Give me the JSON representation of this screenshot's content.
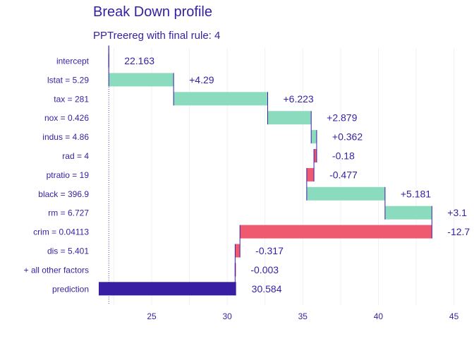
{
  "title": "Break Down profile",
  "subtitle": "PPTreereg with final rule:  4",
  "colors": {
    "text": "#371ea3",
    "increase": "#8bdcbe",
    "decrease": "#f05a71",
    "prediction": "#371ea3",
    "grid": "#f0f0f4",
    "connector": "#371ea3"
  },
  "chart_data": {
    "type": "bar",
    "title": "Break Down profile",
    "subtitle": "PPTreereg with final rule:  4",
    "orientation": "horizontal-waterfall",
    "xlim": [
      21.5,
      46.0
    ],
    "x_ticks": [
      25,
      30,
      35,
      40,
      45
    ],
    "grid": true,
    "categories": [
      "intercept",
      "lstat = 5.29",
      "tax = 281",
      "nox = 0.426",
      "indus = 4.86",
      "rad = 4",
      "ptratio = 19",
      "black = 396.9",
      "rm = 6.727",
      "crim = 0.04113",
      "dis = 5.401",
      "+ all other factors",
      "prediction"
    ],
    "contributions": [
      22.163,
      4.29,
      6.223,
      2.879,
      0.362,
      -0.18,
      -0.477,
      5.181,
      3.1,
      -12.7,
      -0.317,
      -0.003,
      30.584
    ],
    "labels": [
      "22.163",
      "+4.29",
      "+6.223",
      "+2.879",
      "+0.362",
      "-0.18",
      "-0.477",
      "+5.181",
      "+3.1",
      "-12.7",
      "-0.317",
      "-0.003",
      "30.584"
    ]
  }
}
